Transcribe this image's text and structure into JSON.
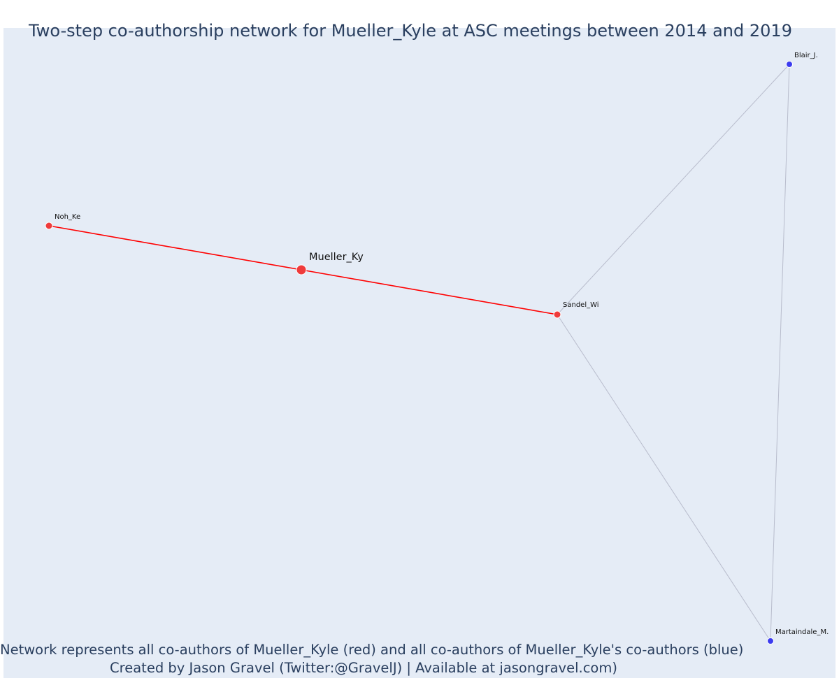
{
  "title": "Two-step co-authorship network for Mueller_Kyle at ASC meetings between 2014 and 2019",
  "caption": {
    "line1": "Network represents all co-authors of Mueller_Kyle (red) and all co-authors of Mueller_Kyle's co-authors (blue)",
    "line2": "Created by Jason Gravel (Twitter:@GravelJ) | Available at jasongravel.com)"
  },
  "colors": {
    "background": "#e5ecf6",
    "first_degree": "#ef3b3b",
    "second_degree": "#3b3bef",
    "focal_edge": "#ff0000",
    "other_edge": "#b8bccc",
    "label": "#111111",
    "title": "#2a3f5f"
  },
  "nodes": [
    {
      "id": "Mueller_Ky",
      "label": "Mueller_Ky",
      "group": "focal"
    },
    {
      "id": "Noh_Ke",
      "label": "Noh_Ke",
      "group": "coauthor"
    },
    {
      "id": "Sandel_Wi",
      "label": "Sandel_Wi",
      "group": "coauthor"
    },
    {
      "id": "Blair_J.",
      "label": "Blair_J.",
      "group": "second_degree"
    },
    {
      "id": "Martaindale_M.",
      "label": "Martaindale_M.",
      "group": "second_degree"
    }
  ],
  "edges": [
    {
      "source": "Noh_Ke",
      "target": "Mueller_Ky",
      "type": "focal"
    },
    {
      "source": "Mueller_Ky",
      "target": "Sandel_Wi",
      "type": "focal"
    },
    {
      "source": "Sandel_Wi",
      "target": "Blair_J.",
      "type": "other"
    },
    {
      "source": "Sandel_Wi",
      "target": "Martaindale_M.",
      "type": "other"
    },
    {
      "source": "Blair_J.",
      "target": "Martaindale_M.",
      "type": "other"
    }
  ]
}
